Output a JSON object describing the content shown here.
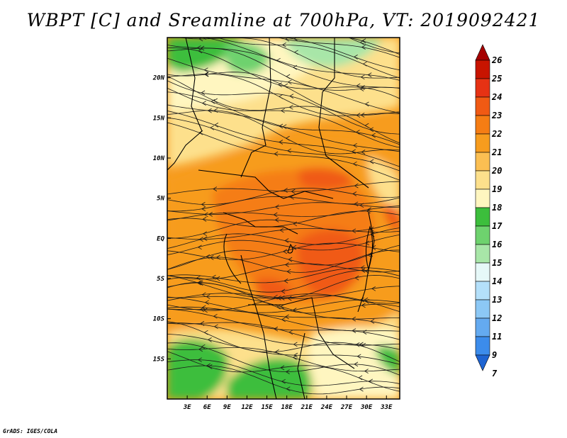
{
  "title": "WBPT [C] and Sreamline at 700hPa, VT: 2019092421",
  "credit": "GrADS: IGES/COLA",
  "map": {
    "lon_ticks": [
      "3E",
      "6E",
      "9E",
      "12E",
      "15E",
      "18E",
      "21E",
      "24E",
      "27E",
      "30E",
      "33E"
    ],
    "lat_ticks": [
      "20N",
      "15N",
      "10N",
      "5N",
      "EQ",
      "5S",
      "10S",
      "15S"
    ],
    "lon_range": [
      0,
      35
    ],
    "lat_range": [
      -20,
      25
    ]
  },
  "colorbar": {
    "levels": [
      "26",
      "25",
      "24",
      "23",
      "22",
      "21",
      "20",
      "19",
      "18",
      "17",
      "16",
      "15",
      "14",
      "13",
      "12",
      "11",
      "9",
      "7"
    ],
    "colors": [
      "#a50000",
      "#c81400",
      "#e63214",
      "#f05a14",
      "#f57d14",
      "#f79c1e",
      "#fbbf52",
      "#fde08c",
      "#fff6c0",
      "#3cbe3c",
      "#6ed26e",
      "#a8e6a8",
      "#e6f8f8",
      "#b4e0fa",
      "#8cc8f5",
      "#64aaf0",
      "#3c8ceb",
      "#1e64d2"
    ]
  },
  "field_colors": {
    "green_dark": "#3cbe3c",
    "green_mid": "#6ed26e",
    "green_light": "#a8e6a8",
    "cream": "#fff6c0",
    "yellow": "#fde08c",
    "light_orange": "#fbbf52",
    "orange": "#f79c1e",
    "dark_orange": "#f57d14",
    "red_orange": "#f05a14"
  }
}
